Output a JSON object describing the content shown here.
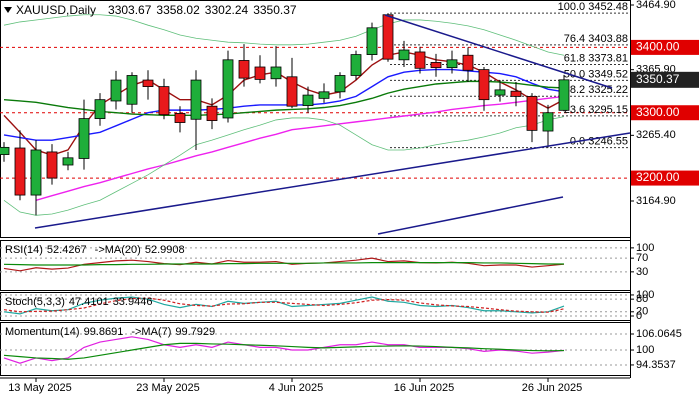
{
  "chart_data": [
    {
      "type": "candlestick",
      "title": "XAUUSD,Daily",
      "categories": [
        null,
        null,
        "13 May 2025",
        null,
        null,
        null,
        null,
        null,
        null,
        null,
        "23 May 2025",
        null,
        null,
        null,
        null,
        null,
        null,
        null,
        "4 Jun 2025",
        null,
        null,
        null,
        null,
        null,
        null,
        null,
        "16 Jun 2025",
        null,
        null,
        null,
        null,
        null,
        null,
        null,
        "26 Jun 2025",
        null
      ],
      "open": [
        3236,
        3246,
        3174,
        3240,
        3220,
        3230,
        3291,
        3318,
        3313,
        3350,
        3340,
        3299,
        3290,
        3310,
        3292,
        3380,
        3370,
        3352,
        3355,
        3311,
        3322,
        3332,
        3357,
        3389,
        3450,
        3381,
        3393,
        3377,
        3369,
        3388,
        3366,
        3327,
        3333,
        3325,
        3272,
        3303.67
      ],
      "high": [
        3255,
        3273,
        3258,
        3252,
        3240,
        3320,
        3330,
        3364,
        3362,
        3365,
        3352,
        3310,
        3365,
        3322,
        3395,
        3405,
        3388,
        3402,
        3384,
        3340,
        3345,
        3362,
        3395,
        3438,
        3452.48,
        3410,
        3401,
        3390,
        3395,
        3400,
        3370,
        3350,
        3347,
        3330,
        3312,
        3358.02
      ],
      "low": [
        3225,
        3166,
        3143,
        3190,
        3212,
        3213,
        3280,
        3305,
        3300,
        3320,
        3290,
        3270,
        3243,
        3275,
        3285,
        3340,
        3345,
        3340,
        3307,
        3300,
        3315,
        3322,
        3350,
        3380,
        3378,
        3370,
        3360,
        3355,
        3360,
        3347,
        3303,
        3317,
        3310,
        3255,
        3246.55,
        3302.24
      ],
      "close": [
        3247,
        3174,
        3243,
        3200,
        3231,
        3291,
        3320,
        3350,
        3357,
        3340,
        3297,
        3285,
        3350,
        3288,
        3381,
        3353,
        3351,
        3370,
        3310,
        3327,
        3332,
        3357,
        3389,
        3430,
        3382,
        3396,
        3368,
        3369,
        3381,
        3365,
        3320,
        3335,
        3325,
        3273,
        3300,
        3350.37
      ],
      "up_color": "#1fae3a",
      "down_color": "#e8191b",
      "overlays": [
        {
          "color": "#9c1010",
          "values": [
            3296,
            3270,
            3243,
            3235,
            3243,
            3281,
            3312,
            3327,
            3342,
            3350,
            3335,
            3320,
            3320,
            3312,
            3327,
            3350,
            3358,
            3362,
            3347,
            3335,
            3327,
            3332,
            3350,
            3373,
            3388,
            3393,
            3388,
            3381,
            3378,
            3373,
            3362,
            3347,
            3335,
            3320,
            3307,
            3320
          ]
        },
        {
          "color": "#1a1aff",
          "values": [
            3266,
            3262,
            3258,
            3258,
            3262,
            3266,
            3270,
            3280,
            3290,
            3300,
            3304,
            3304,
            3304,
            3305,
            3307,
            3310,
            3312,
            3312,
            3312,
            3312,
            3314,
            3318,
            3325,
            3340,
            3355,
            3362,
            3365,
            3366,
            3366,
            3364,
            3362,
            3360,
            3355,
            3345,
            3336,
            3332
          ]
        },
        {
          "color": "#0a7a0a",
          "values": [
            3320,
            3318,
            3316,
            3312,
            3308,
            3305,
            3302,
            3300,
            3298,
            3297,
            3296,
            3296,
            3296,
            3297,
            3298,
            3300,
            3302,
            3304,
            3305,
            3306,
            3308,
            3311,
            3316,
            3322,
            3330,
            3336,
            3340,
            3344,
            3346,
            3348,
            3348,
            3347,
            3345,
            3342,
            3339,
            3338
          ]
        },
        {
          "color": "#ee22ee",
          "values": [
            null,
            null,
            3166,
            3173,
            3180,
            3187,
            3193,
            3200,
            3207,
            3214,
            3220,
            3227,
            3234,
            3240,
            3247,
            3254,
            3261,
            3267,
            3274,
            3277,
            3280,
            3283,
            3286,
            3289,
            3292,
            3295,
            3298,
            3301,
            3305,
            3308,
            3311,
            3313,
            3316,
            3319,
            3322,
            3325
          ]
        },
        {
          "color": "#5fbf7a",
          "values": [
            3434,
            3439,
            3442,
            3445,
            3448,
            3450,
            3450,
            3448,
            3442,
            3434,
            3427,
            3419,
            3414,
            3411,
            3408,
            3407,
            3405,
            3404,
            3404,
            3405,
            3408,
            3411,
            3417,
            3427,
            3436,
            3442,
            3442,
            3440,
            3437,
            3433,
            3427,
            3419,
            3411,
            3402,
            3393,
            3388
          ]
        },
        {
          "color": "#5fbf7a",
          "values": [
            3166,
            3148,
            3143,
            3145,
            3151,
            3159,
            3166,
            3179,
            3192,
            3205,
            3220,
            3235,
            3251,
            3258,
            3266,
            3274,
            3281,
            3289,
            3292,
            3292,
            3289,
            3281,
            3266,
            3251,
            3243,
            3243,
            3246,
            3251,
            3255,
            3258,
            3263,
            3269,
            3277,
            3281,
            3289,
            3294
          ]
        }
      ],
      "ylim": [
        3109.8,
        3472.55
      ],
      "yticks": [
        {
          "value": 3464.9,
          "label": "3464.90"
        },
        {
          "value": 3365.9,
          "label": "3365.90"
        },
        {
          "value": 3265.4,
          "label": "3265.40"
        },
        {
          "value": 3164.9,
          "label": "3164.90"
        }
      ],
      "levels": [
        {
          "value": 3400,
          "label": "3400.00"
        },
        {
          "value": 3300,
          "label": "3300.00"
        },
        {
          "value": 3200,
          "label": "3200.00"
        }
      ],
      "level_color": "#e00000",
      "fib_levels": [
        {
          "value": 3452.48,
          "label": "100.0 3452.48"
        },
        {
          "value": 3403.88,
          "label": "76.4 3403.88"
        },
        {
          "value": 3373.81,
          "label": "61.8 3373.81"
        },
        {
          "value": 3349.52,
          "label": "50.0 3349.52"
        },
        {
          "value": 3325.22,
          "label": "38.2 3325.22"
        },
        {
          "value": 3295.15,
          "label": "23.6 3295.15"
        },
        {
          "value": 3246.55,
          "label": "0.0 3246.55"
        }
      ],
      "grid": false
    },
    {
      "type": "line",
      "series": [
        {
          "name": "RSI(14)",
          "color": "#b01818",
          "values": [
            40,
            33,
            42,
            38,
            41,
            52,
            57,
            62,
            64,
            60,
            54,
            51,
            58,
            53,
            63,
            58,
            58,
            60,
            52,
            55,
            56,
            60,
            64,
            70,
            60,
            62,
            57,
            56,
            58,
            55,
            48,
            50,
            50,
            44,
            48,
            52.4267
          ]
        },
        {
          "name": "->MA(20)",
          "color": "#0a8a0a",
          "values": [
            52,
            51,
            50,
            50,
            50,
            50,
            51,
            51,
            52,
            52,
            53,
            53,
            53,
            53,
            54,
            54,
            55,
            55,
            55,
            55,
            56,
            56,
            56,
            57,
            57,
            57,
            57,
            57,
            57,
            57,
            56,
            56,
            55,
            54,
            53,
            52.9908
          ]
        }
      ],
      "ylim": [
        -23,
        123
      ],
      "yticks": [
        100,
        70,
        30
      ],
      "grid": true
    },
    {
      "type": "line",
      "series": [
        {
          "name": "Stoch(5,3,3)",
          "color": "#1fa8a0",
          "values": [
            20,
            10,
            35,
            25,
            30,
            60,
            75,
            85,
            90,
            80,
            55,
            40,
            55,
            45,
            70,
            60,
            65,
            70,
            45,
            50,
            55,
            60,
            75,
            90,
            70,
            65,
            50,
            45,
            50,
            40,
            25,
            25,
            20,
            15,
            20,
            47.4101
          ]
        },
        {
          "color": "#d02020",
          "dash": true,
          "values": [
            30,
            20,
            22,
            23,
            30,
            38,
            57,
            73,
            83,
            85,
            75,
            58,
            50,
            47,
            57,
            58,
            65,
            65,
            60,
            55,
            50,
            55,
            63,
            75,
            78,
            75,
            62,
            53,
            48,
            45,
            38,
            30,
            23,
            20,
            18,
            33.9446
          ]
        }
      ],
      "ylim": [
        -19,
        114
      ],
      "yticks": [
        100,
        80,
        20,
        0
      ],
      "grid": true
    },
    {
      "type": "line",
      "series": [
        {
          "name": "Momentum(14)",
          "color": "#e020e0",
          "values": [
            97,
            95,
            97,
            96,
            97,
            101,
            103,
            104,
            105,
            104,
            102,
            101,
            102,
            101,
            103,
            102,
            101,
            101,
            100,
            100,
            101,
            102,
            102,
            103,
            102,
            102,
            101,
            101,
            101,
            100.5,
            99.5,
            100,
            99.6,
            98.8,
            99.2,
            99.8691
          ]
        },
        {
          "name": "->MA(7)",
          "color": "#0a8a0a",
          "values": [
            98,
            97.5,
            97,
            96.8,
            96.5,
            97,
            98,
            99,
            100,
            101,
            102,
            102.5,
            102.5,
            102.3,
            102.2,
            102,
            101.8,
            101.6,
            101.3,
            101,
            100.8,
            101,
            101.2,
            101.4,
            101.5,
            101.6,
            101.5,
            101.3,
            101,
            100.8,
            100.5,
            100.3,
            100,
            99.8,
            99.7,
            99.7929
          ]
        }
      ],
      "ylim": [
        90.55,
        110.6
      ],
      "yticks": [
        106.0645,
        100,
        94.3537
      ],
      "grid": true
    }
  ]
}
